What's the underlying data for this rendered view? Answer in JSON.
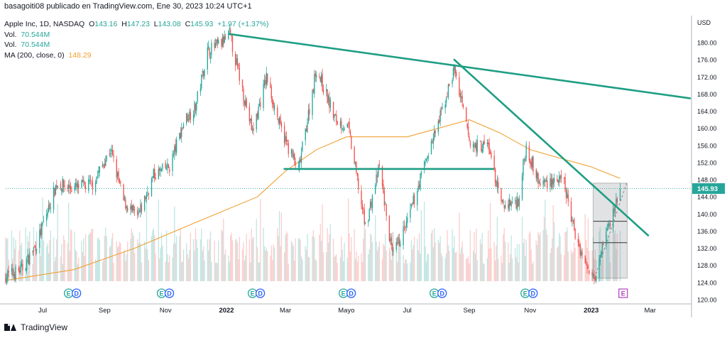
{
  "header": {
    "publisher": "basagoiti08 publicado en TradingView.com, Ene 30, 2023 10:24 UTC+1"
  },
  "legend": {
    "symbol": "Apple Inc, 1D, NASDAQ",
    "o_label": "O",
    "o_value": "143.16",
    "h_label": "H",
    "h_value": "147.23",
    "l_label": "L",
    "l_value": "143.08",
    "c_label": "C",
    "c_value": "145.93",
    "change": "+1.97 (+1.37%)",
    "vol1_label": "Vol.",
    "vol1_value": "70.544M",
    "vol2_label": "Vol.",
    "vol2_value": "70.544M",
    "ma_label": "MA (200, close, 0)",
    "ma_value": "148.29"
  },
  "footer": {
    "brand": "TradingView"
  },
  "colors": {
    "up": "#26a69a",
    "down": "#ef5350",
    "trendline": "#1f9e84",
    "ma": "#f0a030",
    "earnings": "#26a69a",
    "dividend": "#2962ff"
  },
  "chart_data": {
    "type": "candlestick",
    "currency_label": "USD",
    "price_ticks": [
      "180.00",
      "176.00",
      "172.00",
      "168.00",
      "164.00",
      "160.00",
      "156.00",
      "152.00",
      "148.00",
      "144.00",
      "140.00",
      "136.00",
      "132.00",
      "128.00",
      "124.00",
      "120.00"
    ],
    "last_price_label": "145.93",
    "time_labels": [
      "Jul",
      "Sep",
      "Nov",
      "2022",
      "Mar",
      "Mayo",
      "Jul",
      "Sep",
      "Nov",
      "2023",
      "Mar"
    ],
    "ylim": [
      120,
      186
    ],
    "xrange": [
      "2021-05-25",
      "2023-04-10"
    ],
    "grid": false,
    "price_path": [
      [
        "2021-05-25",
        125.5
      ],
      [
        "2021-06-10",
        127
      ],
      [
        "2021-06-25",
        133
      ],
      [
        "2021-07-15",
        147
      ],
      [
        "2021-08-01",
        146
      ],
      [
        "2021-08-20",
        147
      ],
      [
        "2021-09-07",
        155
      ],
      [
        "2021-09-20",
        143
      ],
      [
        "2021-10-04",
        139
      ],
      [
        "2021-10-20",
        149
      ],
      [
        "2021-11-05",
        151
      ],
      [
        "2021-11-20",
        162
      ],
      [
        "2021-12-01",
        165
      ],
      [
        "2021-12-13",
        178
      ],
      [
        "2021-12-28",
        180
      ],
      [
        "2022-01-04",
        182
      ],
      [
        "2022-01-27",
        159
      ],
      [
        "2022-02-10",
        172
      ],
      [
        "2022-02-24",
        160
      ],
      [
        "2022-03-14",
        150
      ],
      [
        "2022-04-01",
        174
      ],
      [
        "2022-04-20",
        162
      ],
      [
        "2022-05-03",
        160
      ],
      [
        "2022-05-20",
        137
      ],
      [
        "2022-06-03",
        151
      ],
      [
        "2022-06-16",
        130
      ],
      [
        "2022-07-01",
        138
      ],
      [
        "2022-07-20",
        153
      ],
      [
        "2022-08-01",
        161
      ],
      [
        "2022-08-17",
        174
      ],
      [
        "2022-09-02",
        156
      ],
      [
        "2022-09-20",
        156
      ],
      [
        "2022-10-03",
        142
      ],
      [
        "2022-10-20",
        143
      ],
      [
        "2022-10-28",
        156
      ],
      [
        "2022-11-10",
        147
      ],
      [
        "2022-11-25",
        148
      ],
      [
        "2022-12-05",
        147
      ],
      [
        "2022-12-15",
        136
      ],
      [
        "2022-12-28",
        127
      ],
      [
        "2023-01-05",
        126
      ],
      [
        "2023-01-13",
        134
      ],
      [
        "2023-01-20",
        138
      ],
      [
        "2023-01-30",
        145.93
      ]
    ],
    "moving_average": {
      "name": "MA (200, close, 0)",
      "points": [
        [
          "2021-05-25",
          124.5
        ],
        [
          "2021-08-01",
          127
        ],
        [
          "2021-10-01",
          132
        ],
        [
          "2021-12-01",
          138
        ],
        [
          "2022-02-01",
          144
        ],
        [
          "2022-03-01",
          150
        ],
        [
          "2022-04-01",
          155
        ],
        [
          "2022-05-01",
          158
        ],
        [
          "2022-06-01",
          158
        ],
        [
          "2022-07-01",
          158
        ],
        [
          "2022-08-01",
          160
        ],
        [
          "2022-09-01",
          162
        ],
        [
          "2022-10-01",
          159
        ],
        [
          "2022-11-01",
          155
        ],
        [
          "2022-12-01",
          153
        ],
        [
          "2023-01-01",
          151
        ],
        [
          "2023-01-30",
          148.29
        ]
      ]
    },
    "trendlines": [
      {
        "from": [
          "2022-01-04",
          182
        ],
        "to": [
          "2023-04-10",
          167
        ]
      },
      {
        "from": [
          "2022-08-17",
          176
        ],
        "to": [
          "2023-02-27",
          135
        ]
      },
      {
        "from": [
          "2022-02-28",
          150.5
        ],
        "to": [
          "2022-09-25",
          150.5
        ]
      }
    ],
    "projection_box": {
      "x": [
        "2023-01-03",
        "2023-02-06"
      ],
      "y": [
        125,
        147.2
      ],
      "levels": [
        138.3,
        133.3
      ]
    },
    "events": [
      {
        "date": "2021-07-27",
        "marks": [
          {
            "letter": "E",
            "kind": "earnings"
          },
          {
            "letter": "D",
            "kind": "dividend"
          }
        ]
      },
      {
        "date": "2021-10-28",
        "marks": [
          {
            "letter": "E",
            "kind": "earnings"
          },
          {
            "letter": "D",
            "kind": "dividend"
          }
        ]
      },
      {
        "date": "2022-01-27",
        "marks": [
          {
            "letter": "E",
            "kind": "earnings"
          },
          {
            "letter": "D",
            "kind": "dividend"
          }
        ]
      },
      {
        "date": "2022-04-28",
        "marks": [
          {
            "letter": "E",
            "kind": "earnings"
          },
          {
            "letter": "D",
            "kind": "dividend"
          }
        ]
      },
      {
        "date": "2022-07-28",
        "marks": [
          {
            "letter": "E",
            "kind": "earnings"
          },
          {
            "letter": "D",
            "kind": "dividend"
          }
        ]
      },
      {
        "date": "2022-10-27",
        "marks": [
          {
            "letter": "E",
            "kind": "earnings"
          },
          {
            "letter": "D",
            "kind": "dividend"
          }
        ]
      },
      {
        "date": "2023-02-02",
        "marks": [
          {
            "letter": "E",
            "kind": "upcoming-earnings"
          }
        ]
      }
    ]
  }
}
